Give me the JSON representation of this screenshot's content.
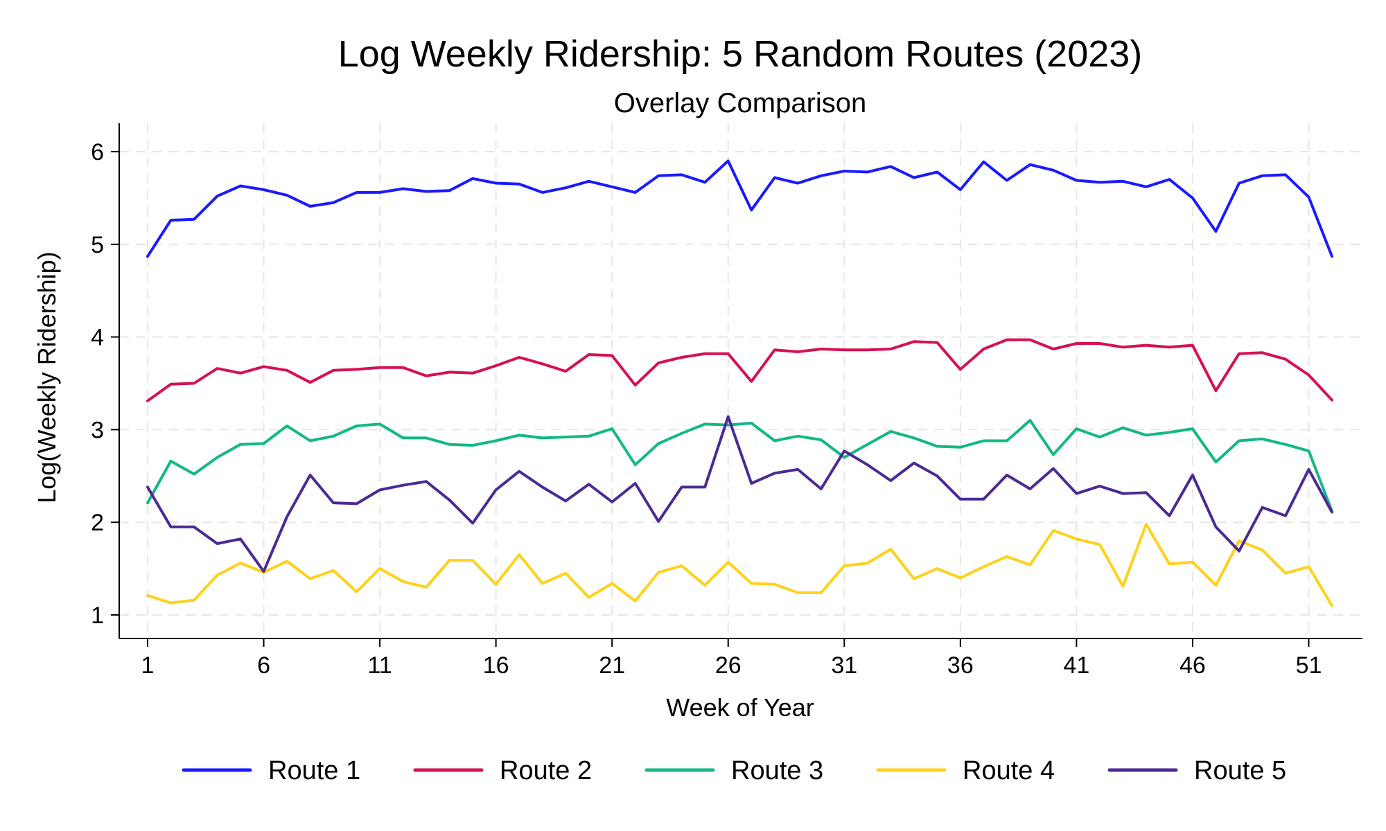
{
  "chart_data": {
    "type": "line",
    "title": "Log Weekly Ridership: 5 Random Routes (2023)",
    "subtitle": "Overlay Comparison",
    "xlabel": "Week of Year",
    "ylabel": "Log(Weekly Ridership)",
    "xlim": [
      1,
      52
    ],
    "ylim": [
      1,
      6
    ],
    "x_ticks": [
      1,
      6,
      11,
      16,
      21,
      26,
      31,
      36,
      41,
      46,
      51
    ],
    "y_ticks": [
      1,
      2,
      3,
      4,
      5,
      6
    ],
    "grid": true,
    "legend_position": "bottom",
    "x": [
      1,
      2,
      3,
      4,
      5,
      6,
      7,
      8,
      9,
      10,
      11,
      12,
      13,
      14,
      15,
      16,
      17,
      18,
      19,
      20,
      21,
      22,
      23,
      24,
      25,
      26,
      27,
      28,
      29,
      30,
      31,
      32,
      33,
      34,
      35,
      36,
      37,
      38,
      39,
      40,
      41,
      42,
      43,
      44,
      45,
      46,
      47,
      48,
      49,
      50,
      51,
      52
    ],
    "series": [
      {
        "name": "Route 1",
        "color": "#1a1aff",
        "values": [
          4.87,
          5.26,
          5.27,
          5.52,
          5.63,
          5.59,
          5.53,
          5.41,
          5.45,
          5.56,
          5.56,
          5.6,
          5.57,
          5.58,
          5.71,
          5.66,
          5.65,
          5.56,
          5.61,
          5.68,
          5.62,
          5.56,
          5.74,
          5.75,
          5.67,
          5.9,
          5.37,
          5.72,
          5.66,
          5.74,
          5.79,
          5.78,
          5.84,
          5.72,
          5.78,
          5.59,
          5.89,
          5.69,
          5.86,
          5.8,
          5.69,
          5.67,
          5.68,
          5.62,
          5.7,
          5.5,
          5.14,
          5.66,
          5.74,
          5.75,
          5.51,
          4.87
        ]
      },
      {
        "name": "Route 2",
        "color": "#d6114f",
        "values": [
          3.31,
          3.49,
          3.5,
          3.66,
          3.61,
          3.68,
          3.64,
          3.51,
          3.64,
          3.65,
          3.67,
          3.67,
          3.58,
          3.62,
          3.61,
          3.69,
          3.78,
          3.71,
          3.63,
          3.81,
          3.8,
          3.48,
          3.72,
          3.78,
          3.82,
          3.82,
          3.52,
          3.86,
          3.84,
          3.87,
          3.86,
          3.86,
          3.87,
          3.95,
          3.94,
          3.65,
          3.87,
          3.97,
          3.97,
          3.87,
          3.93,
          3.93,
          3.89,
          3.91,
          3.89,
          3.91,
          3.42,
          3.82,
          3.83,
          3.76,
          3.59,
          3.32
        ]
      },
      {
        "name": "Route 3",
        "color": "#12b886",
        "values": [
          2.21,
          2.66,
          2.52,
          2.7,
          2.84,
          2.85,
          3.04,
          2.88,
          2.93,
          3.04,
          3.06,
          2.91,
          2.91,
          2.84,
          2.83,
          2.88,
          2.94,
          2.91,
          2.92,
          2.93,
          3.01,
          2.62,
          2.85,
          2.96,
          3.06,
          3.05,
          3.07,
          2.88,
          2.93,
          2.89,
          2.7,
          2.84,
          2.98,
          2.91,
          2.82,
          2.81,
          2.88,
          2.88,
          3.1,
          2.73,
          3.01,
          2.92,
          3.02,
          2.94,
          2.97,
          3.01,
          2.65,
          2.88,
          2.9,
          2.84,
          2.77,
          2.12
        ]
      },
      {
        "name": "Route 4",
        "color": "#ffd11a",
        "values": [
          1.21,
          1.13,
          1.16,
          1.43,
          1.56,
          1.46,
          1.58,
          1.39,
          1.48,
          1.25,
          1.5,
          1.36,
          1.3,
          1.59,
          1.59,
          1.33,
          1.65,
          1.34,
          1.45,
          1.19,
          1.34,
          1.15,
          1.46,
          1.53,
          1.32,
          1.57,
          1.34,
          1.33,
          1.24,
          1.24,
          1.53,
          1.56,
          1.71,
          1.39,
          1.5,
          1.4,
          1.52,
          1.63,
          1.54,
          1.91,
          1.82,
          1.76,
          1.31,
          1.98,
          1.55,
          1.57,
          1.32,
          1.8,
          1.7,
          1.45,
          1.52,
          1.1
        ]
      },
      {
        "name": "Route 5",
        "color": "#4b2a94",
        "values": [
          2.38,
          1.95,
          1.95,
          1.77,
          1.82,
          1.47,
          2.06,
          2.51,
          2.21,
          2.2,
          2.35,
          2.4,
          2.44,
          2.24,
          1.99,
          2.35,
          2.55,
          2.38,
          2.23,
          2.41,
          2.22,
          2.42,
          2.01,
          2.38,
          2.38,
          3.14,
          2.42,
          2.53,
          2.57,
          2.36,
          2.77,
          2.62,
          2.45,
          2.64,
          2.5,
          2.25,
          2.25,
          2.51,
          2.36,
          2.58,
          2.31,
          2.39,
          2.31,
          2.32,
          2.07,
          2.51,
          1.95,
          1.69,
          2.16,
          2.07,
          2.57,
          2.11
        ]
      }
    ]
  }
}
